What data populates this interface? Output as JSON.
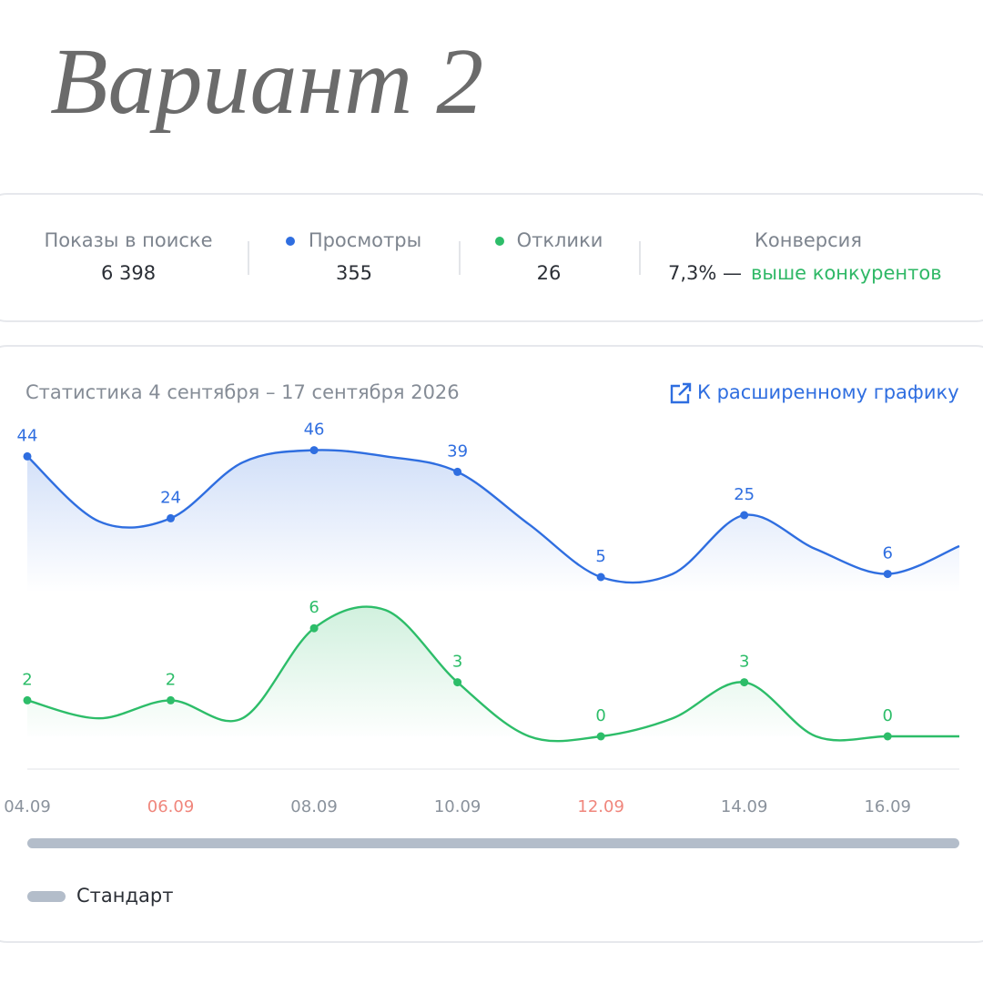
{
  "heading": "Вариант 2",
  "stats": [
    {
      "label": "Показы в поиске",
      "value": "6 398"
    },
    {
      "label": "Просмотры",
      "value": "355"
    },
    {
      "label": "Отклики",
      "value": "26"
    },
    {
      "label": "Конверсия",
      "value": "7,3% —",
      "note": "выше конкурентов",
      "note_color": "#2fb866"
    }
  ],
  "chart_data": {
    "type": "line",
    "title": "Статистика 4 сентября – 17 сентября 2026",
    "link": "К расширенному графику",
    "categories": [
      "04.09",
      null,
      "06.09",
      null,
      "08.09",
      null,
      "10.09",
      null,
      "12.09",
      null,
      "14.09",
      null,
      "16.09",
      null
    ],
    "category_colors": [
      "#8a929c",
      null,
      "#f0867c",
      null,
      "#8a929c",
      null,
      "#8a929c",
      null,
      "#f0867c",
      null,
      "#8a929c",
      null,
      "#8a929c",
      null
    ],
    "series": [
      {
        "color": "#2f6ee0",
        "values": [
          44,
          23,
          24,
          42,
          46,
          44,
          39,
          22,
          5,
          6,
          25,
          14,
          6,
          15
        ]
      },
      {
        "color": "#2dbd69",
        "values": [
          2,
          1,
          2,
          1,
          6,
          7,
          3,
          0,
          0,
          1,
          3,
          0,
          0,
          0
        ]
      }
    ],
    "legend": "Стандарт",
    "legend_color": "#b3bdca"
  }
}
